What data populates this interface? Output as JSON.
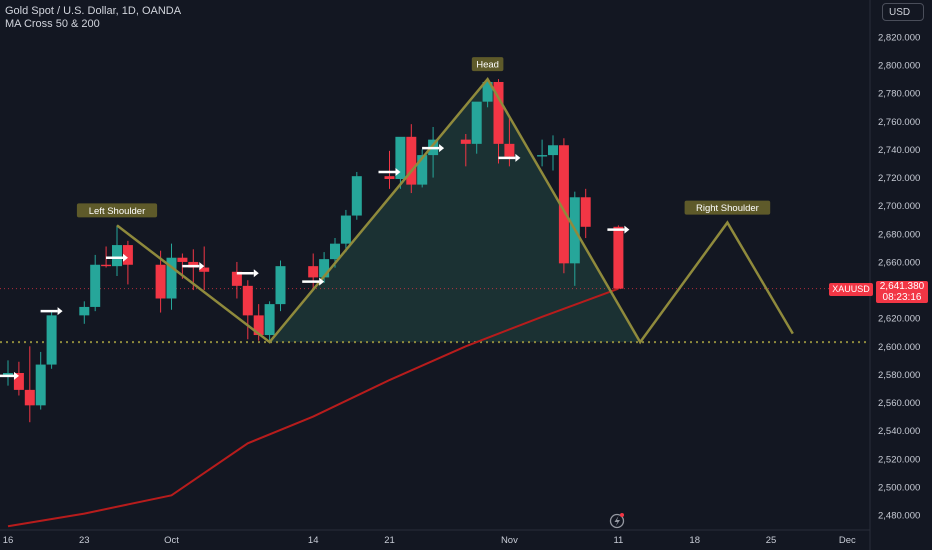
{
  "header": {
    "title": "Gold Spot / U.S. Dollar, 1D, OANDA",
    "indicator": "MA Cross 50 & 200"
  },
  "toolbar": {
    "currency": "USD"
  },
  "price_tag": {
    "ticker": "XAUUSD",
    "price": "2,641.380",
    "countdown": "08:23:16"
  },
  "colors": {
    "background": "#131722",
    "up": "#26a69a",
    "down": "#f23645",
    "pattern_line": "#8f8a3c",
    "pattern_fill": "#1f3b3a",
    "ma_line": "#b71c1c",
    "label_bg": "#5e5a2a",
    "neckline": "#8f8a3c"
  },
  "icons": {
    "logo": "lightning-logo-icon",
    "arrow": "right-arrow-icon"
  },
  "chart_data": {
    "type": "candlestick",
    "symbol": "XAUUSD",
    "y_ticks": [
      "2,480.000",
      "2,500.000",
      "2,520.000",
      "2,540.000",
      "2,560.000",
      "2,580.000",
      "2,600.000",
      "2,620.000",
      "2,640.000",
      "2,660.000",
      "2,680.000",
      "2,700.000",
      "2,720.000",
      "2,740.000",
      "2,760.000",
      "2,780.000",
      "2,800.000",
      "2,820.000"
    ],
    "y_tick_values": [
      2480,
      2500,
      2520,
      2540,
      2560,
      2580,
      2600,
      2620,
      2640,
      2660,
      2680,
      2700,
      2720,
      2740,
      2760,
      2780,
      2800,
      2820
    ],
    "ylim": [
      2475,
      2830
    ],
    "x_ticks": [
      {
        "label": "16",
        "x": "2024-09-16"
      },
      {
        "label": "23",
        "x": "2024-09-23"
      },
      {
        "label": "Oct",
        "x": "2024-10-01"
      },
      {
        "label": "14",
        "x": "2024-10-14"
      },
      {
        "label": "21",
        "x": "2024-10-21"
      },
      {
        "label": "Nov",
        "x": "2024-11-01"
      },
      {
        "label": "11",
        "x": "2024-11-11"
      },
      {
        "label": "18",
        "x": "2024-11-18"
      },
      {
        "label": "25",
        "x": "2024-11-25"
      },
      {
        "label": "Dec",
        "x": "2024-12-02"
      }
    ],
    "candles": [
      {
        "date": "2024-09-16",
        "o": 2579,
        "h": 2590,
        "l": 2572,
        "c": 2581
      },
      {
        "date": "2024-09-17",
        "o": 2581,
        "h": 2589,
        "l": 2565,
        "c": 2569
      },
      {
        "date": "2024-09-18",
        "o": 2569,
        "h": 2600,
        "l": 2546,
        "c": 2558
      },
      {
        "date": "2024-09-19",
        "o": 2558,
        "h": 2596,
        "l": 2555,
        "c": 2587
      },
      {
        "date": "2024-09-20",
        "o": 2587,
        "h": 2625,
        "l": 2584,
        "c": 2622
      },
      {
        "date": "2024-09-23",
        "o": 2622,
        "h": 2632,
        "l": 2616,
        "c": 2628
      },
      {
        "date": "2024-09-24",
        "o": 2628,
        "h": 2665,
        "l": 2625,
        "c": 2658
      },
      {
        "date": "2024-09-25",
        "o": 2658,
        "h": 2671,
        "l": 2656,
        "c": 2657
      },
      {
        "date": "2024-09-26",
        "o": 2657,
        "h": 2686,
        "l": 2650,
        "c": 2672
      },
      {
        "date": "2024-09-27",
        "o": 2672,
        "h": 2675,
        "l": 2644,
        "c": 2658
      },
      {
        "date": "2024-09-30",
        "o": 2658,
        "h": 2668,
        "l": 2624,
        "c": 2634
      },
      {
        "date": "2024-10-01",
        "o": 2634,
        "h": 2673,
        "l": 2626,
        "c": 2663
      },
      {
        "date": "2024-10-02",
        "o": 2663,
        "h": 2666,
        "l": 2648,
        "c": 2660
      },
      {
        "date": "2024-10-03",
        "o": 2660,
        "h": 2669,
        "l": 2640,
        "c": 2656
      },
      {
        "date": "2024-10-04",
        "o": 2656,
        "h": 2671,
        "l": 2640,
        "c": 2653
      },
      {
        "date": "2024-10-07",
        "o": 2653,
        "h": 2660,
        "l": 2634,
        "c": 2643
      },
      {
        "date": "2024-10-08",
        "o": 2643,
        "h": 2647,
        "l": 2605,
        "c": 2622
      },
      {
        "date": "2024-10-09",
        "o": 2622,
        "h": 2630,
        "l": 2604,
        "c": 2608
      },
      {
        "date": "2024-10-10",
        "o": 2608,
        "h": 2632,
        "l": 2604,
        "c": 2630
      },
      {
        "date": "2024-10-11",
        "o": 2630,
        "h": 2661,
        "l": 2625,
        "c": 2657
      },
      {
        "date": "2024-10-14",
        "o": 2657,
        "h": 2666,
        "l": 2640,
        "c": 2649
      },
      {
        "date": "2024-10-15",
        "o": 2649,
        "h": 2667,
        "l": 2645,
        "c": 2662
      },
      {
        "date": "2024-10-16",
        "o": 2662,
        "h": 2677,
        "l": 2656,
        "c": 2673
      },
      {
        "date": "2024-10-17",
        "o": 2673,
        "h": 2697,
        "l": 2667,
        "c": 2693
      },
      {
        "date": "2024-10-18",
        "o": 2693,
        "h": 2724,
        "l": 2690,
        "c": 2721
      },
      {
        "date": "2024-10-21",
        "o": 2721,
        "h": 2739,
        "l": 2712,
        "c": 2719
      },
      {
        "date": "2024-10-22",
        "o": 2719,
        "h": 2748,
        "l": 2712,
        "c": 2749
      },
      {
        "date": "2024-10-23",
        "o": 2749,
        "h": 2758,
        "l": 2709,
        "c": 2715
      },
      {
        "date": "2024-10-24",
        "o": 2715,
        "h": 2740,
        "l": 2713,
        "c": 2736
      },
      {
        "date": "2024-10-25",
        "o": 2736,
        "h": 2756,
        "l": 2720,
        "c": 2747
      },
      {
        "date": "2024-10-28",
        "o": 2747,
        "h": 2751,
        "l": 2728,
        "c": 2744
      },
      {
        "date": "2024-10-29",
        "o": 2744,
        "h": 2773,
        "l": 2737,
        "c": 2774
      },
      {
        "date": "2024-10-30",
        "o": 2774,
        "h": 2790,
        "l": 2770,
        "c": 2788
      },
      {
        "date": "2024-10-31",
        "o": 2788,
        "h": 2790,
        "l": 2730,
        "c": 2744
      },
      {
        "date": "2024-11-01",
        "o": 2744,
        "h": 2764,
        "l": 2728,
        "c": 2735
      },
      {
        "date": "2024-11-04",
        "o": 2735,
        "h": 2747,
        "l": 2728,
        "c": 2736
      },
      {
        "date": "2024-11-05",
        "o": 2736,
        "h": 2750,
        "l": 2725,
        "c": 2743
      },
      {
        "date": "2024-11-06",
        "o": 2743,
        "h": 2748,
        "l": 2652,
        "c": 2659
      },
      {
        "date": "2024-11-07",
        "o": 2659,
        "h": 2710,
        "l": 2643,
        "c": 2706
      },
      {
        "date": "2024-11-08",
        "o": 2706,
        "h": 2712,
        "l": 2677,
        "c": 2685
      },
      {
        "date": "2024-11-11",
        "o": 2685,
        "h": 2686,
        "l": 2641,
        "c": 2641
      }
    ],
    "moving_average": {
      "name": "MA 200",
      "values": [
        {
          "date": "2024-09-16",
          "v": 2472
        },
        {
          "date": "2024-09-23",
          "v": 2481
        },
        {
          "date": "2024-10-01",
          "v": 2494
        },
        {
          "date": "2024-10-08",
          "v": 2531
        },
        {
          "date": "2024-10-14",
          "v": 2550
        },
        {
          "date": "2024-10-21",
          "v": 2576
        },
        {
          "date": "2024-10-28",
          "v": 2600
        },
        {
          "date": "2024-11-04",
          "v": 2621
        },
        {
          "date": "2024-11-11",
          "v": 2641
        }
      ]
    },
    "pattern": {
      "shoulder_points": [
        {
          "date": "2024-09-26",
          "y": 2686
        },
        {
          "date": "2024-10-10",
          "y": 2603
        },
        {
          "date": "2024-10-30",
          "y": 2790
        },
        {
          "date": "2024-11-13",
          "y": 2603
        },
        {
          "date": "2024-11-21",
          "y": 2688
        },
        {
          "date": "2024-11-27",
          "y": 2609
        }
      ],
      "neckline": 2603,
      "labels": [
        {
          "text": "Left Shoulder",
          "date": "2024-09-26",
          "y": 2686
        },
        {
          "text": "Head",
          "date": "2024-10-30",
          "y": 2790
        },
        {
          "text": "Right Shoulder",
          "date": "2024-11-21",
          "y": 2688
        }
      ]
    },
    "signal_arrows": [
      {
        "date": "2024-09-16",
        "y": 2579
      },
      {
        "date": "2024-09-20",
        "y": 2625
      },
      {
        "date": "2024-09-26",
        "y": 2663
      },
      {
        "date": "2024-10-03",
        "y": 2657
      },
      {
        "date": "2024-10-08",
        "y": 2652
      },
      {
        "date": "2024-10-14",
        "y": 2646
      },
      {
        "date": "2024-10-21",
        "y": 2724
      },
      {
        "date": "2024-10-25",
        "y": 2741
      },
      {
        "date": "2024-11-01",
        "y": 2734
      },
      {
        "date": "2024-11-11",
        "y": 2683
      }
    ]
  }
}
